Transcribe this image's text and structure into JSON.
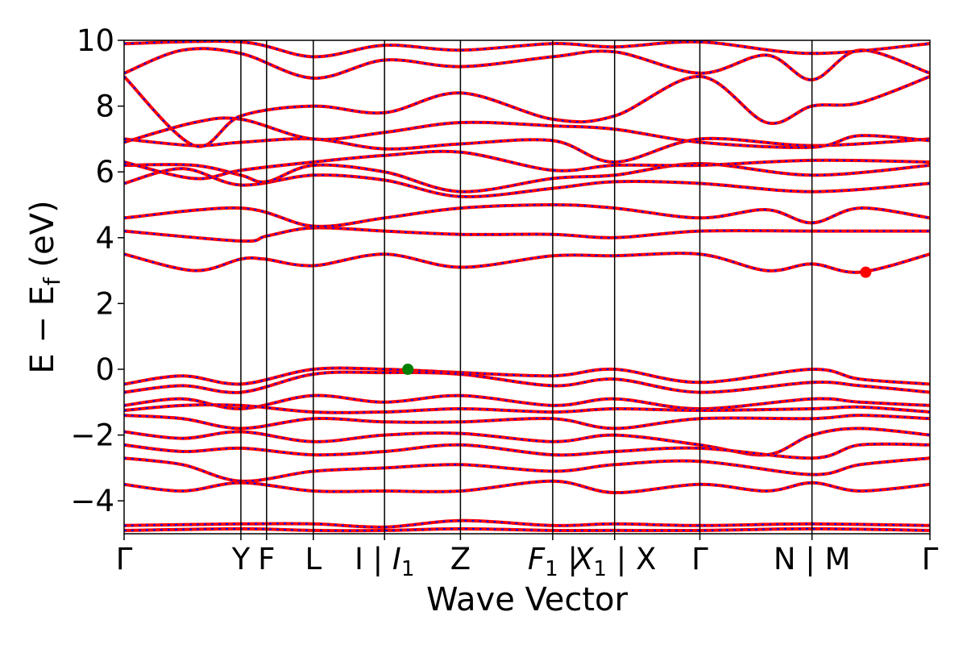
{
  "chart_data": {
    "type": "line",
    "title": "",
    "xlabel": "Wave Vector",
    "ylabel": "E − E",
    "ylabel_subscript": "f",
    "ylabel_unit": " (eV)",
    "ylim": [
      -5,
      10
    ],
    "yticks": [
      -4,
      -2,
      0,
      2,
      4,
      6,
      8,
      10
    ],
    "ytick_labels": [
      "−4",
      "−2",
      "0",
      "2",
      "4",
      "6",
      "8",
      "10"
    ],
    "grid": false,
    "legend": "none",
    "colors": {
      "band_solid": "#ff0000",
      "band_dashed": "#0000ff",
      "cbm_marker": "#ff0000",
      "vbm_marker": "#008000",
      "axes": "#000000"
    },
    "kpath": {
      "positions": [
        0.0,
        1.0,
        1.22,
        1.62,
        2.23,
        2.88,
        3.67,
        4.2,
        4.93,
        5.89,
        6.9
      ],
      "labels": [
        {
          "main": "Γ"
        },
        {
          "main": "Y"
        },
        {
          "main": "F"
        },
        {
          "main": "L"
        },
        {
          "main": "I | ",
          "ital": "I",
          "sub": "1"
        },
        {
          "main": "Z"
        },
        {
          "ital": "F",
          "sub": "1",
          "post": " |"
        },
        {
          "ital": "X",
          "sub": "1",
          "post": " | X"
        },
        {
          "main": "Γ"
        },
        {
          "main": "N | M"
        },
        {
          "main": "Γ"
        }
      ],
      "label_positions": [
        0.0,
        1.0,
        1.22,
        1.62,
        2.23,
        2.88,
        3.67,
        4.2,
        4.93,
        5.89,
        6.9
      ],
      "segment_breaks": [
        3.67,
        5.89
      ]
    },
    "series": [
      {
        "values": [
          [
            0,
            3.5
          ],
          [
            0.6,
            3.0
          ],
          [
            1.0,
            3.35
          ],
          [
            1.2,
            3.35
          ],
          [
            1.62,
            3.15
          ],
          [
            2.23,
            3.5
          ],
          [
            2.88,
            3.1
          ],
          [
            3.67,
            3.45
          ],
          [
            4.2,
            3.45
          ],
          [
            4.93,
            3.5
          ],
          [
            5.5,
            3.0
          ],
          [
            5.89,
            3.2
          ],
          [
            6.3,
            2.95
          ],
          [
            6.9,
            3.5
          ]
        ]
      },
      {
        "values": [
          [
            0,
            4.2
          ],
          [
            1.0,
            3.9
          ],
          [
            1.22,
            4.05
          ],
          [
            1.62,
            4.3
          ],
          [
            2.23,
            4.2
          ],
          [
            2.88,
            4.1
          ],
          [
            3.67,
            4.1
          ],
          [
            4.2,
            4.0
          ],
          [
            4.93,
            4.2
          ],
          [
            5.89,
            4.2
          ],
          [
            6.9,
            4.2
          ]
        ]
      },
      {
        "values": [
          [
            0,
            4.6
          ],
          [
            1.0,
            4.9
          ],
          [
            1.62,
            4.35
          ],
          [
            2.23,
            4.6
          ],
          [
            2.88,
            4.9
          ],
          [
            3.67,
            5.0
          ],
          [
            4.2,
            4.9
          ],
          [
            4.93,
            4.6
          ],
          [
            5.5,
            4.85
          ],
          [
            5.89,
            4.45
          ],
          [
            6.3,
            4.9
          ],
          [
            6.9,
            4.6
          ]
        ]
      },
      {
        "values": [
          [
            0,
            5.65
          ],
          [
            0.5,
            6.1
          ],
          [
            1.0,
            5.6
          ],
          [
            1.62,
            5.9
          ],
          [
            2.23,
            5.75
          ],
          [
            2.88,
            5.25
          ],
          [
            3.67,
            5.5
          ],
          [
            4.2,
            5.7
          ],
          [
            4.93,
            5.65
          ],
          [
            5.89,
            5.4
          ],
          [
            6.9,
            5.65
          ]
        ]
      },
      {
        "values": [
          [
            0,
            6.2
          ],
          [
            0.6,
            6.2
          ],
          [
            1.0,
            5.9
          ],
          [
            1.22,
            5.7
          ],
          [
            1.62,
            6.2
          ],
          [
            2.23,
            6.0
          ],
          [
            2.88,
            5.4
          ],
          [
            3.67,
            5.8
          ],
          [
            4.2,
            5.9
          ],
          [
            4.93,
            6.25
          ],
          [
            5.89,
            5.9
          ],
          [
            6.9,
            6.2
          ]
        ]
      },
      {
        "values": [
          [
            0,
            6.3
          ],
          [
            0.6,
            5.8
          ],
          [
            1.0,
            6.05
          ],
          [
            1.62,
            6.3
          ],
          [
            2.23,
            6.5
          ],
          [
            2.88,
            6.6
          ],
          [
            3.67,
            6.05
          ],
          [
            4.2,
            6.2
          ],
          [
            4.93,
            6.2
          ],
          [
            5.89,
            6.35
          ],
          [
            6.9,
            6.3
          ]
        ]
      },
      {
        "values": [
          [
            0,
            7.0
          ],
          [
            0.6,
            6.8
          ],
          [
            1.0,
            6.9
          ],
          [
            1.62,
            7.0
          ],
          [
            2.23,
            6.7
          ],
          [
            2.88,
            6.85
          ],
          [
            3.67,
            6.95
          ],
          [
            4.2,
            6.3
          ],
          [
            4.93,
            7.0
          ],
          [
            5.89,
            6.8
          ],
          [
            6.9,
            7.0
          ]
        ]
      },
      {
        "values": [
          [
            0,
            6.9
          ],
          [
            0.6,
            7.5
          ],
          [
            1.0,
            7.6
          ],
          [
            1.62,
            7.0
          ],
          [
            2.23,
            7.2
          ],
          [
            2.88,
            7.5
          ],
          [
            3.67,
            7.4
          ],
          [
            4.2,
            7.3
          ],
          [
            4.93,
            6.9
          ],
          [
            5.89,
            6.75
          ],
          [
            6.3,
            7.1
          ],
          [
            6.9,
            6.95
          ]
        ]
      },
      {
        "values": [
          [
            0,
            8.9
          ],
          [
            0.6,
            6.8
          ],
          [
            1.0,
            7.7
          ],
          [
            1.62,
            8.0
          ],
          [
            2.23,
            7.8
          ],
          [
            2.88,
            8.4
          ],
          [
            3.67,
            7.6
          ],
          [
            4.2,
            7.7
          ],
          [
            4.93,
            8.9
          ],
          [
            5.5,
            7.5
          ],
          [
            5.89,
            8.0
          ],
          [
            6.3,
            8.1
          ],
          [
            6.9,
            8.9
          ]
        ]
      },
      {
        "values": [
          [
            0,
            9.0
          ],
          [
            0.5,
            9.7
          ],
          [
            1.0,
            9.6
          ],
          [
            1.62,
            8.85
          ],
          [
            2.23,
            9.4
          ],
          [
            2.88,
            9.2
          ],
          [
            3.67,
            9.5
          ],
          [
            4.2,
            9.65
          ],
          [
            4.93,
            9.0
          ],
          [
            5.5,
            9.55
          ],
          [
            5.89,
            8.8
          ],
          [
            6.3,
            9.7
          ],
          [
            6.9,
            9.0
          ]
        ]
      },
      {
        "values": [
          [
            0,
            9.9
          ],
          [
            1.0,
            9.95
          ],
          [
            1.62,
            9.5
          ],
          [
            2.23,
            9.85
          ],
          [
            2.88,
            9.7
          ],
          [
            3.67,
            9.9
          ],
          [
            4.2,
            9.8
          ],
          [
            4.93,
            9.95
          ],
          [
            5.89,
            9.6
          ],
          [
            6.9,
            9.9
          ]
        ]
      },
      {
        "values": [
          [
            0,
            -0.45
          ],
          [
            0.5,
            -0.2
          ],
          [
            1.0,
            -0.45
          ],
          [
            1.62,
            0.0
          ],
          [
            2.23,
            0.0
          ],
          [
            2.88,
            -0.1
          ],
          [
            3.67,
            -0.2
          ],
          [
            4.2,
            0.0
          ],
          [
            4.93,
            -0.4
          ],
          [
            5.89,
            0.0
          ],
          [
            6.3,
            -0.3
          ],
          [
            6.9,
            -0.45
          ]
        ]
      },
      {
        "values": [
          [
            0,
            -0.7
          ],
          [
            0.5,
            -0.5
          ],
          [
            1.0,
            -0.7
          ],
          [
            1.62,
            -0.15
          ],
          [
            2.23,
            -0.1
          ],
          [
            2.88,
            -0.15
          ],
          [
            3.67,
            -0.5
          ],
          [
            4.2,
            -0.3
          ],
          [
            4.93,
            -0.7
          ],
          [
            5.89,
            -0.4
          ],
          [
            6.3,
            -0.5
          ],
          [
            6.9,
            -0.7
          ]
        ]
      },
      {
        "values": [
          [
            0,
            -1.1
          ],
          [
            0.5,
            -0.9
          ],
          [
            1.0,
            -1.2
          ],
          [
            1.62,
            -0.8
          ],
          [
            2.23,
            -1.0
          ],
          [
            2.88,
            -0.8
          ],
          [
            3.67,
            -1.1
          ],
          [
            4.2,
            -0.9
          ],
          [
            4.93,
            -1.2
          ],
          [
            5.89,
            -0.9
          ],
          [
            6.3,
            -1.0
          ],
          [
            6.9,
            -1.1
          ]
        ]
      },
      {
        "values": [
          [
            0,
            -1.25
          ],
          [
            0.5,
            -1.1
          ],
          [
            1.0,
            -1.1
          ],
          [
            1.62,
            -1.3
          ],
          [
            2.23,
            -1.3
          ],
          [
            2.88,
            -1.2
          ],
          [
            3.67,
            -1.3
          ],
          [
            4.2,
            -1.2
          ],
          [
            4.93,
            -1.25
          ],
          [
            5.89,
            -1.2
          ],
          [
            6.3,
            -1.15
          ],
          [
            6.9,
            -1.3
          ]
        ]
      },
      {
        "values": [
          [
            0,
            -1.4
          ],
          [
            0.5,
            -1.5
          ],
          [
            1.0,
            -1.8
          ],
          [
            1.62,
            -1.5
          ],
          [
            2.23,
            -1.6
          ],
          [
            2.88,
            -1.6
          ],
          [
            3.67,
            -1.5
          ],
          [
            4.2,
            -1.8
          ],
          [
            4.93,
            -1.5
          ],
          [
            5.89,
            -1.5
          ],
          [
            6.3,
            -1.4
          ],
          [
            6.9,
            -1.5
          ]
        ]
      },
      {
        "values": [
          [
            0,
            -1.9
          ],
          [
            0.5,
            -2.1
          ],
          [
            1.0,
            -1.9
          ],
          [
            1.62,
            -2.2
          ],
          [
            2.23,
            -2.0
          ],
          [
            2.88,
            -1.95
          ],
          [
            3.67,
            -2.2
          ],
          [
            4.2,
            -2.0
          ],
          [
            4.93,
            -2.3
          ],
          [
            5.5,
            -2.6
          ],
          [
            5.89,
            -2.0
          ],
          [
            6.3,
            -1.8
          ],
          [
            6.9,
            -2.0
          ]
        ]
      },
      {
        "values": [
          [
            0,
            -2.3
          ],
          [
            0.5,
            -2.5
          ],
          [
            1.0,
            -2.4
          ],
          [
            1.62,
            -2.6
          ],
          [
            2.23,
            -2.5
          ],
          [
            2.88,
            -2.3
          ],
          [
            3.67,
            -2.6
          ],
          [
            4.2,
            -2.5
          ],
          [
            4.93,
            -2.4
          ],
          [
            5.89,
            -2.7
          ],
          [
            6.3,
            -2.3
          ],
          [
            6.9,
            -2.3
          ]
        ]
      },
      {
        "values": [
          [
            0,
            -2.7
          ],
          [
            0.5,
            -2.9
          ],
          [
            1.0,
            -3.4
          ],
          [
            1.62,
            -3.1
          ],
          [
            2.23,
            -3.0
          ],
          [
            2.88,
            -2.9
          ],
          [
            3.67,
            -3.1
          ],
          [
            4.2,
            -2.9
          ],
          [
            4.93,
            -2.8
          ],
          [
            5.89,
            -3.2
          ],
          [
            6.3,
            -2.9
          ],
          [
            6.9,
            -2.7
          ]
        ]
      },
      {
        "values": [
          [
            0,
            -3.5
          ],
          [
            0.5,
            -3.7
          ],
          [
            1.0,
            -3.45
          ],
          [
            1.62,
            -3.7
          ],
          [
            2.23,
            -3.7
          ],
          [
            2.88,
            -3.7
          ],
          [
            3.67,
            -3.4
          ],
          [
            4.2,
            -3.75
          ],
          [
            4.93,
            -3.5
          ],
          [
            5.5,
            -3.7
          ],
          [
            5.89,
            -3.45
          ],
          [
            6.3,
            -3.7
          ],
          [
            6.9,
            -3.5
          ]
        ]
      },
      {
        "values": [
          [
            0,
            -4.75
          ],
          [
            1.0,
            -4.7
          ],
          [
            1.62,
            -4.7
          ],
          [
            2.23,
            -4.8
          ],
          [
            2.88,
            -4.6
          ],
          [
            3.67,
            -4.75
          ],
          [
            4.2,
            -4.7
          ],
          [
            4.93,
            -4.75
          ],
          [
            5.89,
            -4.7
          ],
          [
            6.9,
            -4.75
          ]
        ]
      },
      {
        "values": [
          [
            0,
            -4.9
          ],
          [
            1.0,
            -4.85
          ],
          [
            1.62,
            -4.9
          ],
          [
            2.23,
            -4.9
          ],
          [
            2.88,
            -4.85
          ],
          [
            3.67,
            -4.9
          ],
          [
            4.2,
            -4.9
          ],
          [
            4.93,
            -4.9
          ],
          [
            5.89,
            -4.85
          ],
          [
            6.9,
            -4.9
          ]
        ]
      }
    ],
    "markers": [
      {
        "x": 2.43,
        "y": 0.0,
        "color": "#008000"
      },
      {
        "x": 6.35,
        "y": 2.95,
        "color": "#ff0000"
      }
    ]
  }
}
